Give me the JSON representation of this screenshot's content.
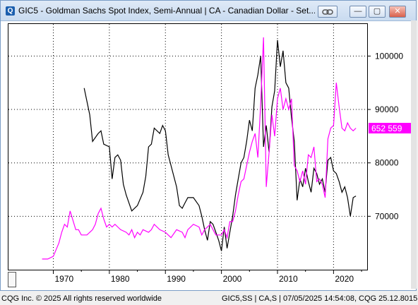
{
  "window": {
    "title": "GIC5 - Goldman Sachs Spot Index, Semi-Annual   |   CA - Canadian Dollar - Set...",
    "app_icon_glyph": "Q"
  },
  "controls": {
    "link_icon": "link-icon",
    "minimize_glyph": "—",
    "maximize_glyph": "▢",
    "close_glyph": "✕"
  },
  "readout": {
    "label": "652  559",
    "color": "#ff00ff"
  },
  "footer": {
    "left": "CQG Inc. © 2025 All rights reserved worldwide",
    "right": "GIC5,SS   |   CA,S | 07/05/2025 14:54:08, CQG 25.12.8015"
  },
  "chart_data": {
    "type": "line",
    "xlim": [
      1962,
      2026
    ],
    "ylim": [
      60000,
      106000
    ],
    "x_ticks": [
      "1970",
      "1980",
      "1990",
      "2000",
      "2010",
      "2020"
    ],
    "y_ticks": [
      "70000",
      "80000",
      "90000",
      "100000"
    ],
    "grid": true,
    "series": [
      {
        "color": "#000000",
        "points": [
          [
            1975.5,
            94000
          ],
          [
            1976.5,
            89000
          ],
          [
            1977,
            84000
          ],
          [
            1978,
            85500
          ],
          [
            1978.5,
            86000
          ],
          [
            1979,
            83500
          ],
          [
            1980,
            83000
          ],
          [
            1980.5,
            77000
          ],
          [
            1981,
            81000
          ],
          [
            1981.5,
            81500
          ],
          [
            1982,
            80500
          ],
          [
            1982.5,
            76000
          ],
          [
            1983,
            74000
          ],
          [
            1984,
            71000
          ],
          [
            1985,
            72000
          ],
          [
            1986,
            74500
          ],
          [
            1986.5,
            77500
          ],
          [
            1987,
            83000
          ],
          [
            1987.5,
            83500
          ],
          [
            1988,
            86500
          ],
          [
            1989,
            85500
          ],
          [
            1989.5,
            87000
          ],
          [
            1990,
            86000
          ],
          [
            1990.5,
            81500
          ],
          [
            1991,
            79500
          ],
          [
            1992,
            75500
          ],
          [
            1992.5,
            72000
          ],
          [
            1993,
            71500
          ],
          [
            1993.5,
            72500
          ],
          [
            1994,
            73500
          ],
          [
            1995,
            73500
          ],
          [
            1996,
            72000
          ],
          [
            1996.5,
            70000
          ],
          [
            1997,
            67500
          ],
          [
            1997.5,
            65500
          ],
          [
            1998,
            69000
          ],
          [
            1998.5,
            68500
          ],
          [
            1999,
            67000
          ],
          [
            1999.5,
            65500
          ],
          [
            2000,
            63500
          ],
          [
            2000.5,
            68000
          ],
          [
            2001,
            64000
          ],
          [
            2001.5,
            67000
          ],
          [
            2002,
            70000
          ],
          [
            2002.5,
            74000
          ],
          [
            2003,
            77000
          ],
          [
            2003.5,
            80000
          ],
          [
            2004,
            81000
          ],
          [
            2004.5,
            84000
          ],
          [
            2005,
            88000
          ],
          [
            2005.5,
            86000
          ],
          [
            2006,
            94000
          ],
          [
            2006.5,
            96500
          ],
          [
            2007,
            100000
          ],
          [
            2007.5,
            83000
          ],
          [
            2008,
            87000
          ],
          [
            2008.5,
            82000
          ],
          [
            2009,
            90500
          ],
          [
            2009.5,
            93500
          ],
          [
            2010,
            103000
          ],
          [
            2010.5,
            98000
          ],
          [
            2011,
            101000
          ],
          [
            2011.5,
            95000
          ],
          [
            2012,
            94000
          ],
          [
            2012.5,
            88500
          ],
          [
            2013,
            84000
          ],
          [
            2013.5,
            73000
          ],
          [
            2014,
            77000
          ],
          [
            2014.5,
            75500
          ],
          [
            2015,
            79000
          ],
          [
            2015.5,
            76500
          ],
          [
            2016,
            74500
          ],
          [
            2016.5,
            79000
          ],
          [
            2017,
            78000
          ],
          [
            2017.5,
            76000
          ],
          [
            2018,
            77000
          ],
          [
            2018.5,
            74500
          ],
          [
            2019,
            80500
          ],
          [
            2019.5,
            81000
          ],
          [
            2020,
            78500
          ],
          [
            2020.5,
            78000
          ],
          [
            2021,
            76500
          ],
          [
            2021.5,
            74500
          ],
          [
            2022,
            75500
          ],
          [
            2022.5,
            73500
          ],
          [
            2023,
            70000
          ],
          [
            2023.5,
            73500
          ],
          [
            2024,
            73800
          ]
        ]
      },
      {
        "color": "#ff00ff",
        "points": [
          [
            1968,
            62000
          ],
          [
            1969,
            62000
          ],
          [
            1970,
            62500
          ],
          [
            1971,
            65000
          ],
          [
            1971.5,
            67000
          ],
          [
            1972,
            68500
          ],
          [
            1972.5,
            68000
          ],
          [
            1973,
            71000
          ],
          [
            1974,
            67500
          ],
          [
            1974.5,
            67500
          ],
          [
            1975,
            66500
          ],
          [
            1976,
            66500
          ],
          [
            1977,
            67500
          ],
          [
            1977.5,
            68500
          ],
          [
            1978,
            70500
          ],
          [
            1978.5,
            71500
          ],
          [
            1979,
            69500
          ],
          [
            1979.5,
            68000
          ],
          [
            1980,
            68500
          ],
          [
            1980.5,
            68000
          ],
          [
            1981,
            68500
          ],
          [
            1981.5,
            68000
          ],
          [
            1982,
            67500
          ],
          [
            1983,
            67000
          ],
          [
            1983.5,
            66500
          ],
          [
            1984,
            67500
          ],
          [
            1984.5,
            66000
          ],
          [
            1985,
            67000
          ],
          [
            1985.5,
            66500
          ],
          [
            1986,
            67500
          ],
          [
            1987,
            67000
          ],
          [
            1987.5,
            67500
          ],
          [
            1988,
            68500
          ],
          [
            1989,
            67500
          ],
          [
            1990,
            67000
          ],
          [
            1990.5,
            66500
          ],
          [
            1991,
            66000
          ],
          [
            1992,
            67500
          ],
          [
            1993,
            67000
          ],
          [
            1993.5,
            66000
          ],
          [
            1994,
            67500
          ],
          [
            1995,
            68500
          ],
          [
            1996,
            68000
          ],
          [
            1996.5,
            66500
          ],
          [
            1997,
            67500
          ],
          [
            1998,
            68500
          ],
          [
            1998.5,
            67500
          ],
          [
            1999,
            66500
          ],
          [
            2000,
            66500
          ],
          [
            2000.5,
            67500
          ],
          [
            2001,
            66000
          ],
          [
            2001.5,
            69000
          ],
          [
            2002,
            69000
          ],
          [
            2002.5,
            71000
          ],
          [
            2003,
            74000
          ],
          [
            2003.5,
            76500
          ],
          [
            2004,
            77000
          ],
          [
            2004.5,
            79500
          ],
          [
            2005,
            82000
          ],
          [
            2005.5,
            84000
          ],
          [
            2006,
            85500
          ],
          [
            2006.5,
            81000
          ],
          [
            2007,
            91000
          ],
          [
            2007.5,
            103500
          ],
          [
            2008,
            75500
          ],
          [
            2008.5,
            82000
          ],
          [
            2009,
            89000
          ],
          [
            2009.5,
            85000
          ],
          [
            2010,
            92000
          ],
          [
            2010.5,
            94000
          ],
          [
            2011,
            90000
          ],
          [
            2011.5,
            92000
          ],
          [
            2012,
            90000
          ],
          [
            2012.5,
            92000
          ],
          [
            2013,
            79500
          ],
          [
            2013.5,
            78500
          ],
          [
            2014,
            76500
          ],
          [
            2014.5,
            78500
          ],
          [
            2015,
            76000
          ],
          [
            2015.5,
            81500
          ],
          [
            2016,
            81000
          ],
          [
            2016.5,
            83000
          ],
          [
            2017,
            76500
          ],
          [
            2017.5,
            77000
          ],
          [
            2018,
            76000
          ],
          [
            2018.5,
            73500
          ],
          [
            2019,
            84500
          ],
          [
            2019.5,
            86500
          ],
          [
            2020,
            87000
          ],
          [
            2020.5,
            95000
          ],
          [
            2021,
            90500
          ],
          [
            2021.5,
            86500
          ],
          [
            2022,
            86000
          ],
          [
            2022.5,
            87500
          ],
          [
            2023,
            86500
          ],
          [
            2023.5,
            86000
          ],
          [
            2024,
            86500
          ]
        ]
      }
    ]
  }
}
